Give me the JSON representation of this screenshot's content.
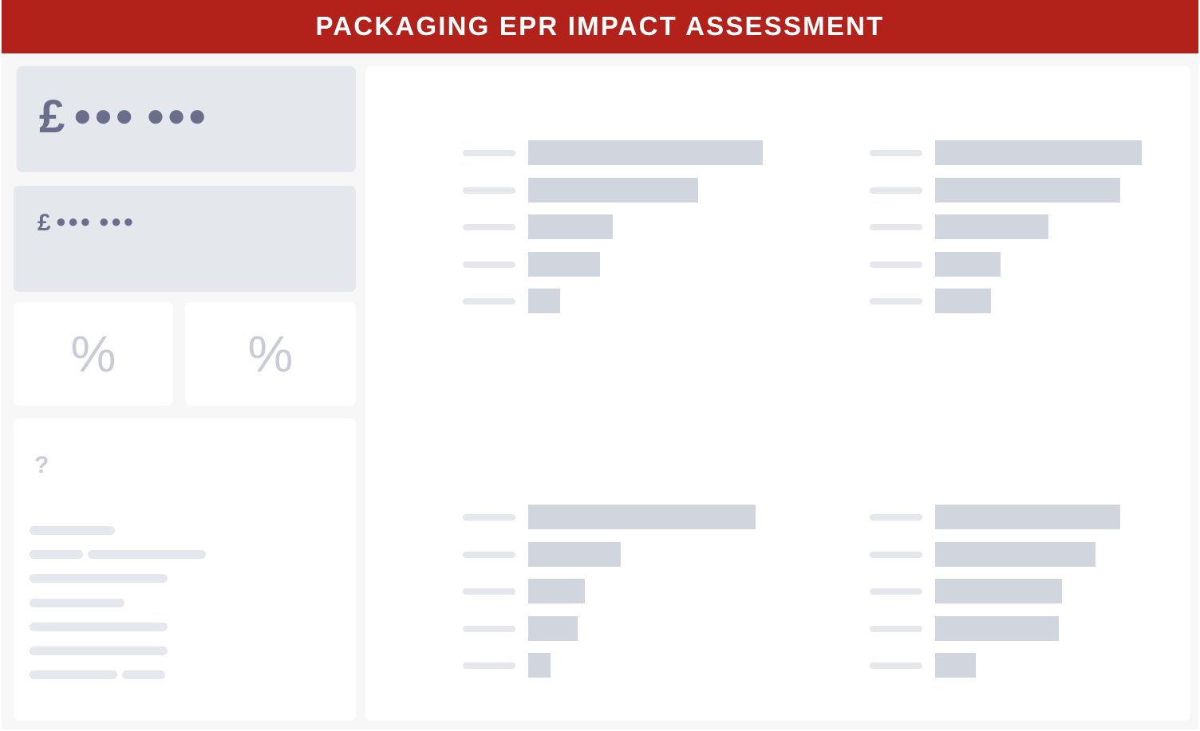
{
  "header": {
    "title": "PACKAGING EPR IMPACT ASSESSMENT"
  },
  "kpis": {
    "primary": {
      "currency": "£",
      "masked_value": "●●● ●●●"
    },
    "secondary": {
      "currency": "£",
      "masked_value": "●●● ●●●"
    },
    "percent_left": {
      "symbol": "%"
    },
    "percent_right": {
      "symbol": "%"
    }
  },
  "info_panel": {
    "symbol": "?"
  },
  "chart_data": [
    {
      "type": "bar",
      "orientation": "horizontal",
      "values": [
        100,
        72.5,
        36,
        30.5,
        13.5
      ],
      "xlim": [
        0,
        100
      ]
    },
    {
      "type": "bar",
      "orientation": "horizontal",
      "values": [
        100,
        89.5,
        55,
        31.5,
        27
      ],
      "xlim": [
        0,
        100
      ]
    },
    {
      "type": "bar",
      "orientation": "horizontal",
      "values": [
        97,
        39.5,
        24,
        21,
        9.5
      ],
      "xlim": [
        0,
        100
      ]
    },
    {
      "type": "bar",
      "orientation": "horizontal",
      "values": [
        89.5,
        77.5,
        61.5,
        60,
        19.5
      ],
      "xlim": [
        0,
        100
      ]
    }
  ],
  "colors": {
    "header": "#b2221a",
    "kpi_card": "#e4e7ec",
    "kpi_text": "#6b6e8a",
    "placeholder": "#c9ccd7",
    "bar": "#d1d5de"
  }
}
